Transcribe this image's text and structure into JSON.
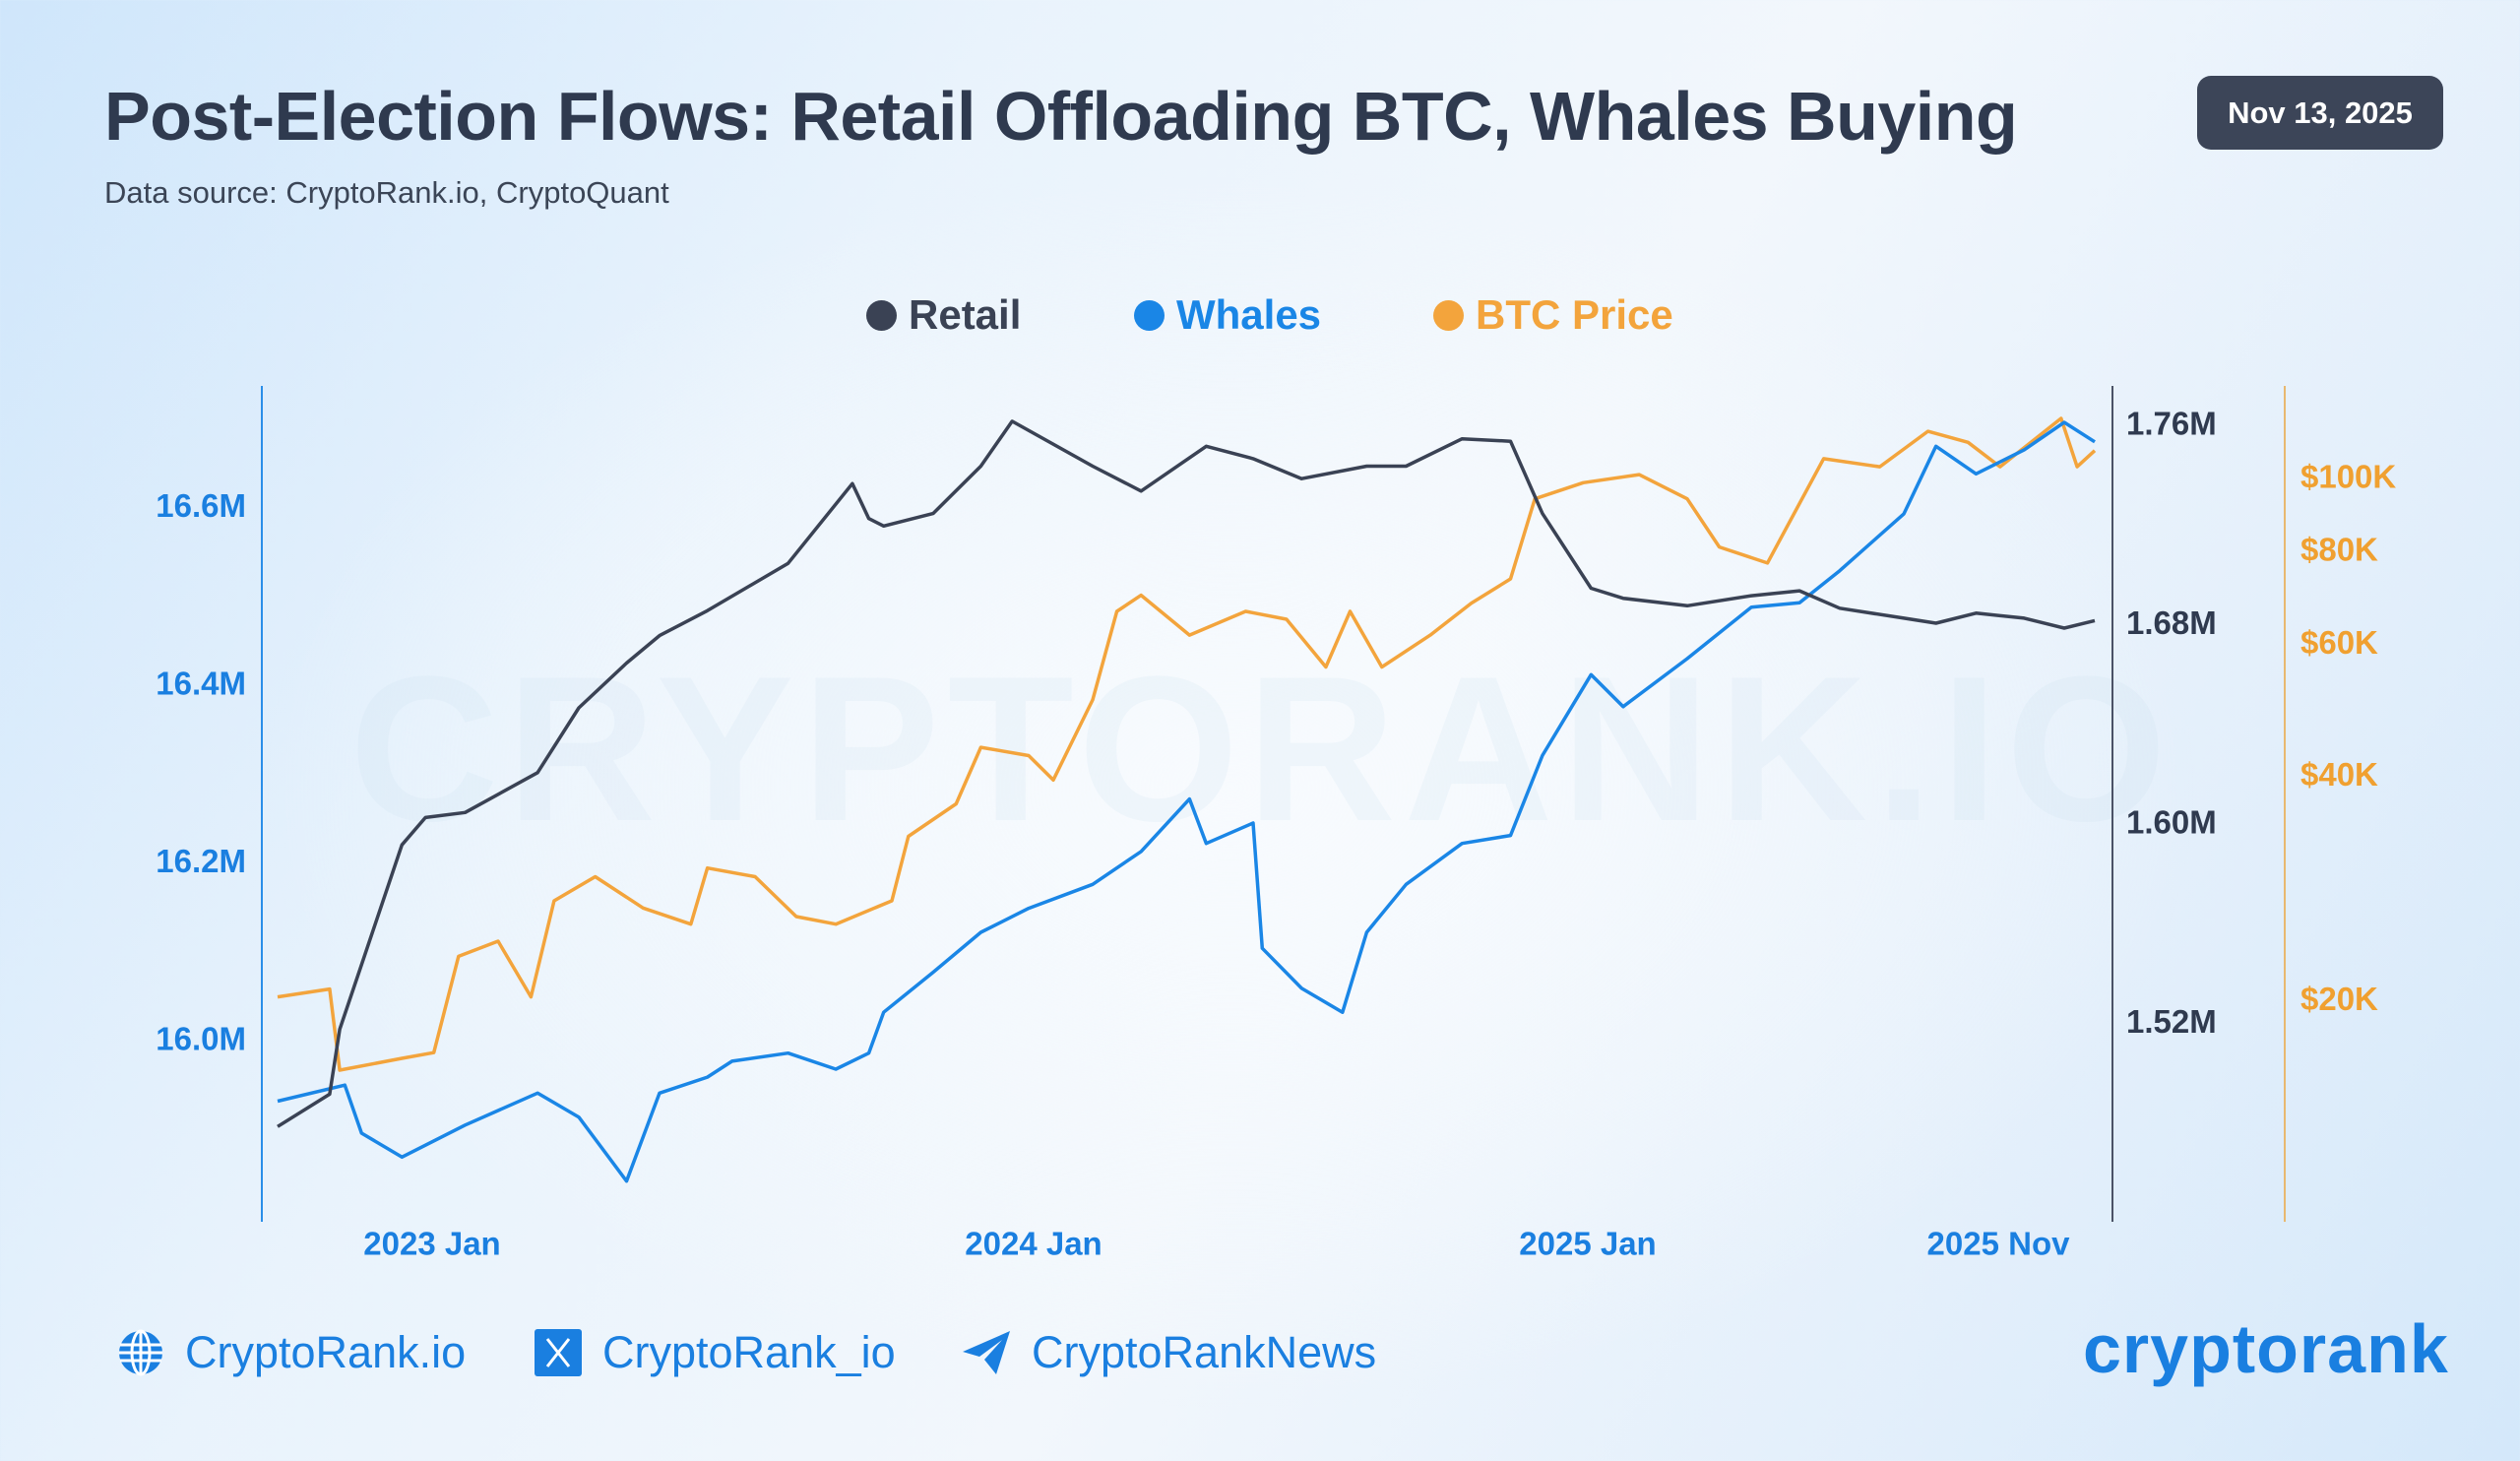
{
  "header": {
    "title": "Post-Election Flows: Retail Offloading BTC, Whales Buying",
    "subtitle": "Data source: CryptoRank.io, CryptoQuant",
    "date": "Nov 13, 2025"
  },
  "watermark": "CRYPTORANK.IO",
  "footer": {
    "website": "CryptoRank.io",
    "x_handle": "CryptoRank_io",
    "telegram": "CryptoRankNews",
    "logo": "cryptorank",
    "icons": [
      "globe-icon",
      "x-icon",
      "telegram-icon"
    ]
  },
  "colors": {
    "retail": "#3a4254",
    "whales": "#1a86e6",
    "btc": "#f3a43c",
    "axis_left": "#1a7fe0"
  },
  "chart_data": {
    "type": "line",
    "title": "Post-Election Flows: Retail Offloading BTC, Whales Buying",
    "legend": [
      "Retail",
      "Whales",
      "BTC Price"
    ],
    "legend_placement": "top-center",
    "grid": false,
    "x_ticks": [
      {
        "date": "2023-01-01",
        "label": "2023 Jan"
      },
      {
        "date": "2024-01-01",
        "label": "2024 Jan"
      },
      {
        "date": "2025-01-01",
        "label": "2025 Jan"
      },
      {
        "date": "2025-11-01",
        "label": "2025 Nov"
      }
    ],
    "axes": {
      "left": {
        "series": "Whales",
        "ylim": [
          15.797,
          16.738
        ],
        "unit": "M",
        "ticks": [
          {
            "v": 16.0,
            "label": "16.0M"
          },
          {
            "v": 16.2,
            "label": "16.2M"
          },
          {
            "v": 16.4,
            "label": "16.4M"
          },
          {
            "v": 16.6,
            "label": "16.6M"
          }
        ]
      },
      "right": {
        "series": "Retail",
        "ylim": [
          1.441,
          1.776
        ],
        "unit": "M",
        "ticks": [
          {
            "v": 1.52,
            "label": "1.52M"
          },
          {
            "v": 1.6,
            "label": "1.60M"
          },
          {
            "v": 1.68,
            "label": "1.68M"
          },
          {
            "v": 1.76,
            "label": "1.76M"
          }
        ]
      },
      "right2": {
        "series": "BTC Price",
        "scale": "log",
        "ylim": [
          10.2,
          133
        ],
        "unit": "K USD",
        "ticks": [
          {
            "v": 20,
            "label": "$20K"
          },
          {
            "v": 40,
            "label": "$40K"
          },
          {
            "v": 60,
            "label": "$60K"
          },
          {
            "v": 80,
            "label": "$80K"
          },
          {
            "v": 100,
            "label": "$100K"
          }
        ]
      }
    },
    "series": [
      {
        "name": "Retail",
        "axis": "right",
        "points": [
          [
            "2022-10-01",
            1.479
          ],
          [
            "2022-11-01",
            1.492
          ],
          [
            "2022-11-07",
            1.518
          ],
          [
            "2022-11-20",
            1.544
          ],
          [
            "2022-12-14",
            1.592
          ],
          [
            "2022-12-28",
            1.603
          ],
          [
            "2023-01-21",
            1.605
          ],
          [
            "2023-03-06",
            1.621
          ],
          [
            "2023-03-31",
            1.647
          ],
          [
            "2023-04-29",
            1.665
          ],
          [
            "2023-05-19",
            1.676
          ],
          [
            "2023-06-17",
            1.686
          ],
          [
            "2023-08-05",
            1.705
          ],
          [
            "2023-09-13",
            1.737
          ],
          [
            "2023-09-23",
            1.723
          ],
          [
            "2023-10-02",
            1.72
          ],
          [
            "2023-11-01",
            1.725
          ],
          [
            "2023-11-30",
            1.744
          ],
          [
            "2023-12-19",
            1.762
          ],
          [
            "2024-02-09",
            1.744
          ],
          [
            "2024-03-12",
            1.734
          ],
          [
            "2024-04-24",
            1.752
          ],
          [
            "2024-05-25",
            1.747
          ],
          [
            "2024-06-26",
            1.739
          ],
          [
            "2024-08-08",
            1.744
          ],
          [
            "2024-09-03",
            1.744
          ],
          [
            "2024-10-10",
            1.755
          ],
          [
            "2024-11-11",
            1.754
          ],
          [
            "2024-12-02",
            1.725
          ],
          [
            "2025-01-03",
            1.695
          ],
          [
            "2025-01-23",
            1.691
          ],
          [
            "2025-03-04",
            1.688
          ],
          [
            "2025-04-13",
            1.692
          ],
          [
            "2025-05-13",
            1.694
          ],
          [
            "2025-06-07",
            1.687
          ],
          [
            "2025-07-17",
            1.683
          ],
          [
            "2025-08-06",
            1.681
          ],
          [
            "2025-08-31",
            1.685
          ],
          [
            "2025-09-30",
            1.683
          ],
          [
            "2025-10-25",
            1.679
          ],
          [
            "2025-11-13",
            1.682
          ]
        ]
      },
      {
        "name": "Whales",
        "axis": "left",
        "points": [
          [
            "2022-10-01",
            15.933
          ],
          [
            "2022-11-10",
            15.951
          ],
          [
            "2022-11-20",
            15.897
          ],
          [
            "2022-12-14",
            15.87
          ],
          [
            "2023-01-21",
            15.906
          ],
          [
            "2023-03-06",
            15.942
          ],
          [
            "2023-03-31",
            15.915
          ],
          [
            "2023-04-29",
            15.843
          ],
          [
            "2023-05-19",
            15.942
          ],
          [
            "2023-06-17",
            15.96
          ],
          [
            "2023-07-02",
            15.978
          ],
          [
            "2023-08-05",
            15.987
          ],
          [
            "2023-09-03",
            15.969
          ],
          [
            "2023-09-23",
            15.987
          ],
          [
            "2023-10-02",
            16.033
          ],
          [
            "2023-11-01",
            16.078
          ],
          [
            "2023-11-30",
            16.123
          ],
          [
            "2023-12-29",
            16.15
          ],
          [
            "2024-02-09",
            16.177
          ],
          [
            "2024-03-12",
            16.214
          ],
          [
            "2024-04-13",
            16.273
          ],
          [
            "2024-04-24",
            16.223
          ],
          [
            "2024-05-25",
            16.246
          ],
          [
            "2024-05-31",
            16.105
          ],
          [
            "2024-06-26",
            16.06
          ],
          [
            "2024-07-23",
            16.033
          ],
          [
            "2024-08-08",
            16.123
          ],
          [
            "2024-09-03",
            16.177
          ],
          [
            "2024-10-10",
            16.223
          ],
          [
            "2024-11-11",
            16.232
          ],
          [
            "2024-12-02",
            16.322
          ],
          [
            "2025-01-03",
            16.413
          ],
          [
            "2025-01-23",
            16.377
          ],
          [
            "2025-03-04",
            16.431
          ],
          [
            "2025-04-13",
            16.489
          ],
          [
            "2025-05-13",
            16.494
          ],
          [
            "2025-06-07",
            16.53
          ],
          [
            "2025-07-17",
            16.594
          ],
          [
            "2025-08-06",
            16.67
          ],
          [
            "2025-08-31",
            16.639
          ],
          [
            "2025-09-30",
            16.666
          ],
          [
            "2025-10-25",
            16.697
          ],
          [
            "2025-11-13",
            16.675
          ]
        ]
      },
      {
        "name": "BTC Price",
        "axis": "right2",
        "points": [
          [
            "2022-10-01",
            20.3
          ],
          [
            "2022-11-01",
            20.8
          ],
          [
            "2022-11-07",
            16.2
          ],
          [
            "2022-12-14",
            16.8
          ],
          [
            "2023-01-02",
            17.1
          ],
          [
            "2023-01-17",
            23.0
          ],
          [
            "2023-02-10",
            24.1
          ],
          [
            "2023-03-02",
            20.3
          ],
          [
            "2023-03-16",
            27.3
          ],
          [
            "2023-04-10",
            29.4
          ],
          [
            "2023-05-09",
            26.7
          ],
          [
            "2023-06-07",
            25.4
          ],
          [
            "2023-06-17",
            30.2
          ],
          [
            "2023-07-16",
            29.4
          ],
          [
            "2023-08-10",
            26.0
          ],
          [
            "2023-09-03",
            25.4
          ],
          [
            "2023-10-07",
            27.3
          ],
          [
            "2023-10-17",
            33.3
          ],
          [
            "2023-11-15",
            36.8
          ],
          [
            "2023-11-30",
            43.8
          ],
          [
            "2023-12-29",
            42.7
          ],
          [
            "2024-01-14",
            39.6
          ],
          [
            "2024-02-09",
            50.7
          ],
          [
            "2024-02-25",
            66.6
          ],
          [
            "2024-03-12",
            70.0
          ],
          [
            "2024-04-13",
            61.9
          ],
          [
            "2024-05-20",
            66.6
          ],
          [
            "2024-06-16",
            65.0
          ],
          [
            "2024-07-12",
            56.1
          ],
          [
            "2024-07-28",
            66.6
          ],
          [
            "2024-08-18",
            56.1
          ],
          [
            "2024-09-19",
            61.9
          ],
          [
            "2024-10-16",
            68.3
          ],
          [
            "2024-11-11",
            73.6
          ],
          [
            "2024-11-27",
            94.2
          ],
          [
            "2024-12-29",
            99.0
          ],
          [
            "2025-02-02",
            101.5
          ],
          [
            "2025-03-04",
            94.2
          ],
          [
            "2025-03-24",
            81.2
          ],
          [
            "2025-04-23",
            77.3
          ],
          [
            "2025-05-28",
            106.6
          ],
          [
            "2025-07-02",
            104.0
          ],
          [
            "2025-08-01",
            116.0
          ],
          [
            "2025-08-26",
            112.1
          ],
          [
            "2025-09-15",
            104.0
          ],
          [
            "2025-10-23",
            120.7
          ],
          [
            "2025-11-02",
            104.0
          ],
          [
            "2025-11-13",
            109.3
          ]
        ]
      }
    ]
  }
}
